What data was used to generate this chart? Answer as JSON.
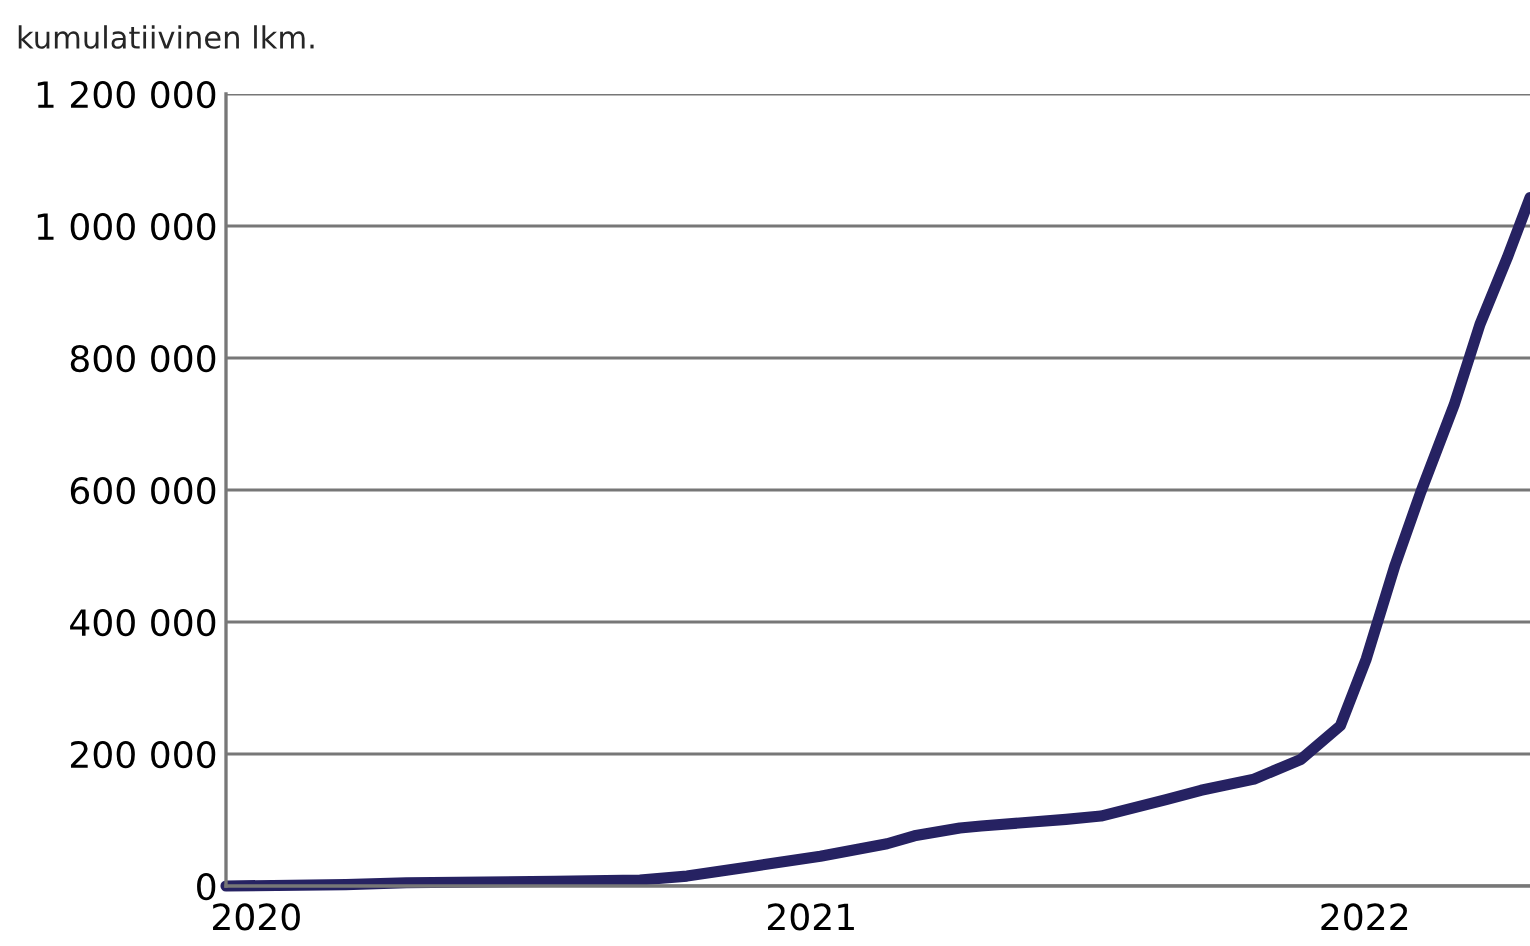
{
  "chart_data": {
    "type": "line",
    "ylabel": "kumulatiivinen lkm.",
    "x": [
      "2019-12-12",
      "2020-02-29",
      "2020-04-09",
      "2020-07-16",
      "2020-09-10",
      "2020-10-11",
      "2020-11-24",
      "2021-01-07",
      "2021-02-20",
      "2021-03-10",
      "2021-04-09",
      "2021-04-23",
      "2021-06-18",
      "2021-07-11",
      "2021-08-23",
      "2021-09-15",
      "2021-10-20",
      "2021-11-20",
      "2021-12-16",
      "2022-01-02",
      "2022-01-21",
      "2022-02-07",
      "2022-03-01",
      "2022-03-18",
      "2022-04-05",
      "2022-04-20"
    ],
    "series": [
      {
        "color": "#262262",
        "values": [
          0,
          2000,
          5000,
          7000,
          9000,
          15000,
          30000,
          45000,
          64000,
          76000,
          88000,
          91000,
          101000,
          106000,
          131000,
          145000,
          162000,
          192000,
          243000,
          344000,
          486000,
          597000,
          729000,
          851000,
          952000,
          1043000
        ]
      }
    ],
    "xlim": [
      "2019-12-12",
      "2022-04-20"
    ],
    "xticks": [
      {
        "value": "2020-01-01",
        "label": "2020"
      },
      {
        "value": "2021-01-01",
        "label": "2021"
      },
      {
        "value": "2022-01-01",
        "label": "2022"
      }
    ],
    "ylim": [
      0,
      1200000
    ],
    "yticks": [
      {
        "value": 0,
        "label": "0"
      },
      {
        "value": 200000,
        "label": "200 000"
      },
      {
        "value": 400000,
        "label": "400 000"
      },
      {
        "value": 600000,
        "label": "600 000"
      },
      {
        "value": 800000,
        "label": "800 000"
      },
      {
        "value": 1000000,
        "label": "1 000 000"
      },
      {
        "value": 1200000,
        "label": "1 200 000"
      }
    ],
    "grid": "y",
    "line_style": "solid",
    "legend": false
  }
}
